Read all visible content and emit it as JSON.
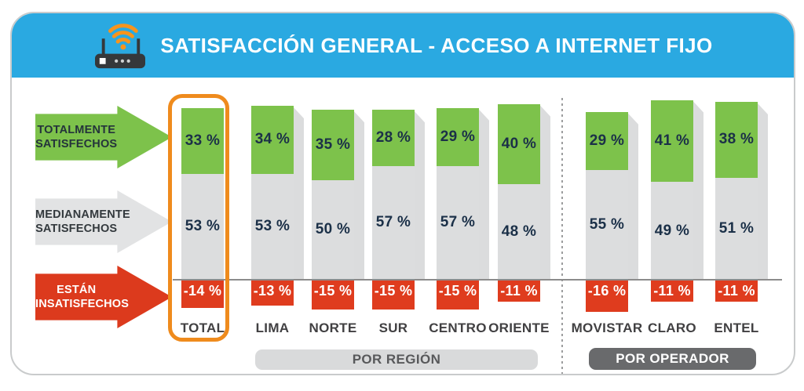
{
  "header": {
    "title": "SATISFACCIÓN GENERAL - ACCESO A INTERNET FIJO",
    "icon": "router-wifi-icon"
  },
  "legend": {
    "items": [
      {
        "line1": "TOTALMENTE",
        "line2": "SATISFECHOS",
        "series": "Totalmente satisfechos"
      },
      {
        "line1": "MEDIANAMENTE",
        "line2": "SATISFECHOS",
        "series": "Medianamente satisfechos"
      },
      {
        "line1": "ESTÁN",
        "line2": "INSATISFECHOS",
        "series": "Están insatisfechos"
      }
    ]
  },
  "chart_data": {
    "type": "bar",
    "stacked": true,
    "unit": "%",
    "title": "SATISFACCIÓN GENERAL - ACCESO A INTERNET FIJO",
    "categories": [
      "TOTAL",
      "LIMA",
      "NORTE",
      "SUR",
      "CENTRO",
      "ORIENTE",
      "MOVISTAR",
      "CLARO",
      "ENTEL"
    ],
    "series": [
      {
        "name": "Totalmente satisfechos",
        "values": [
          33,
          34,
          35,
          28,
          29,
          40,
          29,
          41,
          38
        ]
      },
      {
        "name": "Medianamente satisfechos",
        "values": [
          53,
          53,
          50,
          57,
          57,
          48,
          55,
          49,
          51
        ]
      },
      {
        "name": "Están insatisfechos",
        "values": [
          -14,
          -13,
          -15,
          -15,
          -15,
          -11,
          -16,
          -11,
          -11
        ]
      }
    ],
    "highlighted_category": "TOTAL",
    "sections": [
      {
        "label": "POR REGIÓN",
        "categories": [
          "LIMA",
          "NORTE",
          "SUR",
          "CENTRO",
          "ORIENTE"
        ]
      },
      {
        "label": "POR OPERADOR",
        "categories": [
          "MOVISTAR",
          "CLARO",
          "ENTEL"
        ]
      }
    ],
    "baseline": 0,
    "ylim": [
      -16,
      90
    ],
    "grid": false,
    "legend_position": "left"
  },
  "colors": {
    "banner_cyan": "#2AA9E1",
    "satisfied_green": "#7DC24B",
    "medium_gray": "#DCDDDE",
    "unsatisfied_red": "#DF3C1E",
    "value_navy": "#1B3048",
    "highlight_orange": "#EF8B1D",
    "wifi_orange": "#F7941D",
    "axis_line_gray": "#8C8C8C",
    "category_label_gray": "#414042",
    "region_pill_bg": "#D9DADB",
    "region_pill_text": "#58595B",
    "operator_pill_bg": "#696A6C"
  }
}
